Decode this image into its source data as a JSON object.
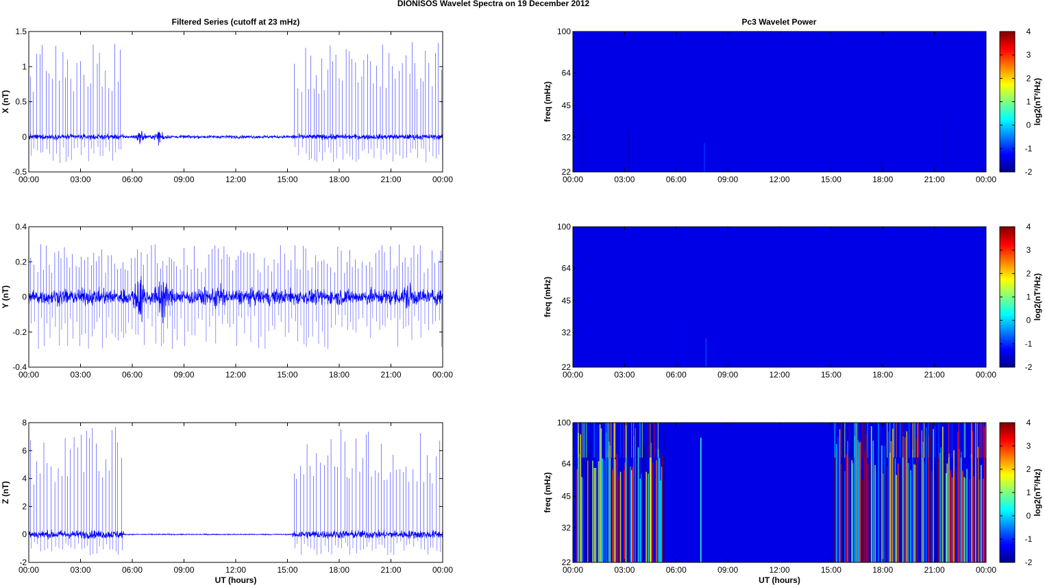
{
  "figure": {
    "suptitle": "DIONISOS Wavelet Spectra on 19 December  2012",
    "left_title": "Filtered Series (cutoff at 23 mHz)",
    "right_title": "Pc3 Wavelet Power",
    "xlabel": "UT (hours)"
  },
  "chart_data": [
    {
      "type": "line",
      "panel": "X",
      "ylabel": "X (nT)",
      "xlim": [
        0,
        24
      ],
      "ylim": [
        -0.5,
        1.5
      ],
      "yticks": [
        "-0.5",
        "0",
        "0.5",
        "1",
        "1.5"
      ],
      "xticks": [
        "00:00",
        "03:00",
        "06:00",
        "09:00",
        "12:00",
        "15:00",
        "18:00",
        "21:00",
        "00:00"
      ],
      "color": "#0000ff",
      "noise_envelope": [
        {
          "x": [
            0,
            5.5
          ],
          "amplitude": 0.05
        },
        {
          "x": [
            5.5,
            15.3
          ],
          "amplitude": 0.03
        },
        {
          "x": [
            15.3,
            24
          ],
          "amplitude": 0.05
        }
      ],
      "disturbances": [
        {
          "x": 6.5,
          "amplitude": 0.12
        },
        {
          "x": 7.6,
          "amplitude": 0.15
        }
      ],
      "spike_bursts": [
        {
          "x": [
            0,
            5.5
          ],
          "max": 1.35
        },
        {
          "x": [
            15.3,
            24
          ],
          "max": 1.35
        }
      ]
    },
    {
      "type": "line",
      "panel": "Y",
      "ylabel": "Y (nT)",
      "xlim": [
        0,
        24
      ],
      "ylim": [
        -0.4,
        0.4
      ],
      "yticks": [
        "-0.4",
        "-0.2",
        "0",
        "0.2",
        "0.4"
      ],
      "xticks": [
        "00:00",
        "03:00",
        "06:00",
        "09:00",
        "12:00",
        "15:00",
        "18:00",
        "21:00",
        "00:00"
      ],
      "color": "#0000ff",
      "noise_envelope": [
        {
          "x": [
            0,
            24
          ],
          "amplitude": 0.06
        }
      ],
      "disturbances": [
        {
          "x": 6.4,
          "amplitude": 0.22
        },
        {
          "x": 7.7,
          "amplitude": 0.2
        },
        {
          "x": 11.0,
          "amplitude": 0.12
        },
        {
          "x": 22.0,
          "amplitude": 0.12
        }
      ],
      "spike_bursts": [
        {
          "x": [
            0,
            24
          ],
          "max": 0.3
        }
      ]
    },
    {
      "type": "line",
      "panel": "Z",
      "ylabel": "Z (nT)",
      "xlim": [
        0,
        24
      ],
      "ylim": [
        -2,
        8
      ],
      "yticks": [
        "-2",
        "0",
        "2",
        "4",
        "6",
        "8"
      ],
      "xticks": [
        "00:00",
        "03:00",
        "06:00",
        "09:00",
        "12:00",
        "15:00",
        "18:00",
        "21:00",
        "00:00"
      ],
      "xlabel": "UT (hours)",
      "color": "#0000ff",
      "noise_envelope": [
        {
          "x": [
            0,
            5.5
          ],
          "amplitude": 0.4
        },
        {
          "x": [
            5.5,
            15.3
          ],
          "amplitude": 0.05
        },
        {
          "x": [
            15.3,
            24
          ],
          "amplitude": 0.4
        }
      ],
      "disturbances": [],
      "spike_bursts": [
        {
          "x": [
            0,
            5.5
          ],
          "max": 7.8
        },
        {
          "x": [
            15.3,
            24
          ],
          "max": 7.8
        }
      ]
    },
    {
      "type": "heatmap",
      "panel": "X",
      "ylabel": "freq (mHz)",
      "yscale": "log",
      "ylim": [
        22,
        100
      ],
      "yticks": [
        "22",
        "32",
        "45",
        "64",
        "100"
      ],
      "xlim": [
        0,
        24
      ],
      "xticks": [
        "00:00",
        "03:00",
        "06:00",
        "09:00",
        "12:00",
        "15:00",
        "18:00",
        "21:00",
        "00:00"
      ],
      "colorbar": {
        "label": "log2(nT²/Hz)",
        "range": [
          -2,
          4
        ],
        "ticks": [
          "-2",
          "-1",
          "0",
          "1",
          "2",
          "3",
          "4"
        ],
        "colormap": "jet"
      },
      "background_value": -2,
      "streaks": [
        {
          "x": 0.5,
          "top": 40,
          "value": -1.6
        },
        {
          "x": 3.2,
          "top": 34,
          "value": -1.6
        },
        {
          "x": 5.7,
          "top": 30,
          "value": -1.4
        },
        {
          "x": 6.2,
          "top": 28,
          "value": -1.4
        },
        {
          "x": 7.6,
          "top": 30,
          "value": -1.0
        },
        {
          "x": 17.8,
          "top": 26,
          "value": -1.6
        },
        {
          "x": 21.5,
          "top": 40,
          "value": -1.7
        }
      ]
    },
    {
      "type": "heatmap",
      "panel": "Y",
      "ylabel": "freq (mHz)",
      "yscale": "log",
      "ylim": [
        22,
        100
      ],
      "yticks": [
        "22",
        "32",
        "45",
        "64",
        "100"
      ],
      "xlim": [
        0,
        24
      ],
      "xticks": [
        "00:00",
        "03:00",
        "06:00",
        "09:00",
        "12:00",
        "15:00",
        "18:00",
        "21:00",
        "00:00"
      ],
      "colorbar": {
        "label": "log2(nT²/Hz)",
        "range": [
          -2,
          4
        ],
        "ticks": [
          "-2",
          "-1",
          "0",
          "1",
          "2",
          "3",
          "4"
        ],
        "colormap": "jet"
      },
      "background_value": -2,
      "streaks": [
        {
          "x": 6.3,
          "top": 36,
          "value": -1.3
        },
        {
          "x": 7.7,
          "top": 30,
          "value": -0.9
        },
        {
          "x": 10.8,
          "top": 24,
          "value": -1.4
        }
      ]
    },
    {
      "type": "heatmap",
      "panel": "Z",
      "ylabel": "freq (mHz)",
      "yscale": "log",
      "ylim": [
        22,
        100
      ],
      "yticks": [
        "22",
        "32",
        "45",
        "64",
        "100"
      ],
      "xlim": [
        0,
        24
      ],
      "xticks": [
        "00:00",
        "03:00",
        "06:00",
        "09:00",
        "12:00",
        "15:00",
        "18:00",
        "21:00",
        "00:00"
      ],
      "xlabel": "UT (hours)",
      "colorbar": {
        "label": "log2(nT²/Hz)",
        "range": [
          -2,
          4
        ],
        "ticks": [
          "-2",
          "-1",
          "0",
          "1",
          "2",
          "3",
          "4"
        ],
        "colormap": "jet"
      },
      "background_value": -2,
      "active_bands": [
        {
          "x": [
            0,
            5.3
          ],
          "density": "high"
        },
        {
          "x": [
            15.1,
            24
          ],
          "density": "high"
        }
      ],
      "streaks": [
        {
          "x": 7.4,
          "top": 85,
          "value": 0.5
        }
      ]
    }
  ]
}
